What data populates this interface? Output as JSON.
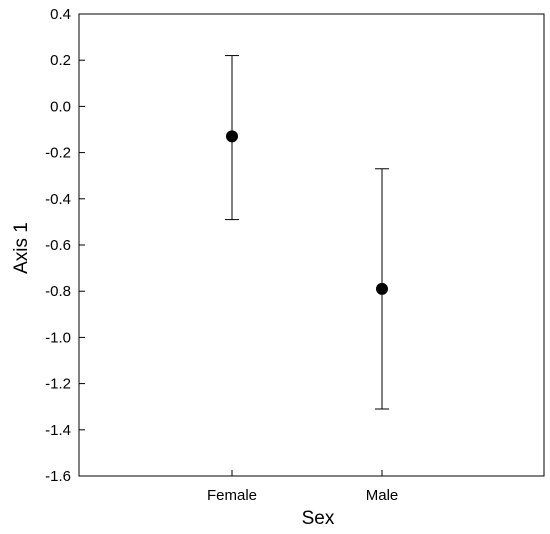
{
  "chart_data": {
    "type": "scatter",
    "title": "",
    "xlabel": "Sex",
    "ylabel": "Axis 1",
    "categories": [
      "Female",
      "Male"
    ],
    "series": [
      {
        "values": [
          -0.13,
          -0.79
        ],
        "error_low": [
          -0.49,
          -1.31
        ],
        "error_high": [
          0.22,
          -0.27
        ]
      }
    ],
    "ylim": [
      -1.6,
      0.4
    ],
    "yticks": [
      "0.4",
      "0.2",
      "0.0",
      "-0.2",
      "-0.4",
      "-0.6",
      "-0.8",
      "-1.0",
      "-1.2",
      "-1.4",
      "-1.6"
    ],
    "grid": false,
    "legend": "none"
  }
}
